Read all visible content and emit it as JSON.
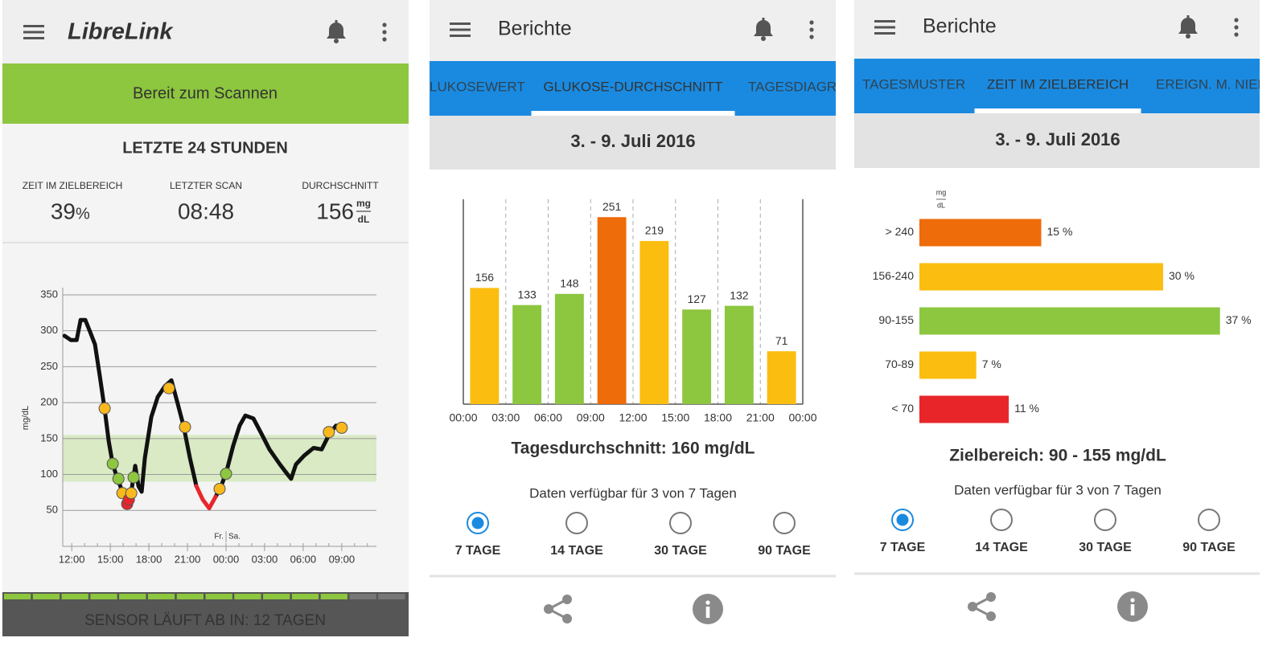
{
  "screens": [
    {
      "app_title": "LibreLink",
      "banner": "Bereit zum Scannen",
      "section_title": "LETZTE 24 STUNDEN",
      "stats": [
        {
          "label": "ZEIT IM ZIELBEREICH",
          "value": 39,
          "unit": "%"
        },
        {
          "label": "LETZTER SCAN",
          "value": "08:48"
        },
        {
          "label": "DURCHSCHNITT",
          "value": 156,
          "unit_top": "mg",
          "unit_bottom": "dL"
        }
      ],
      "chart": {
        "type": "line",
        "y_label": "mg/dL",
        "ylim": [
          0,
          360
        ],
        "yticks": [
          50,
          100,
          150,
          200,
          250,
          300,
          350
        ],
        "xlim": [
          -0.7,
          23.7
        ],
        "xticks": [
          {
            "value": 0,
            "label": "12:00"
          },
          {
            "value": 3,
            "label": "15:00"
          },
          {
            "value": 6,
            "label": "18:00"
          },
          {
            "value": 9,
            "label": "21:00"
          },
          {
            "value": 12,
            "label": "00:00"
          },
          {
            "value": 15,
            "label": "03:00"
          },
          {
            "value": 18,
            "label": "06:00"
          },
          {
            "value": 21,
            "label": "09:00"
          }
        ],
        "grid": true,
        "target_range": [
          90,
          155
        ],
        "target_color": "#d9eac4",
        "day_labels": [
          "Fr.",
          "Sa."
        ],
        "day_break": 12,
        "series": [
          {
            "color": "#111111",
            "x": [
              -0.56,
              -0.06,
              0.38,
              0.69,
              1.06,
              1.44,
              1.81,
              2.19,
              2.56,
              2.88,
              3.19,
              3.56,
              3.94,
              4.31,
              4.63,
              4.94,
              5.19,
              5.44,
              5.69,
              6.19,
              6.69,
              7.25,
              7.75,
              8.19,
              8.69,
              9.19,
              9.69,
              10.19,
              10.69,
              11.19,
              11.63,
              12.06,
              12.56,
              13.06,
              13.5,
              14.13,
              14.75,
              15.38,
              16.19,
              16.75,
              17.06,
              17.44,
              18.06,
              18.81,
              19.44,
              20.06,
              20.56
            ],
            "values": [
              293,
              287,
              287,
              315,
              315,
              298,
              281,
              236,
              191,
              146,
              114,
              94,
              76,
              61,
              76,
              112,
              84,
              76,
              123,
              180,
              208,
              223,
              231,
              202,
              168,
              123,
              84,
              null,
              null,
              69,
              84,
              106,
              140,
              168,
              182,
              178,
              157,
              135,
              114,
              101,
              94,
              114,
              126,
              137,
              135,
              157,
              168
            ]
          },
          {
            "color": "#e8262a",
            "x": [
              9.69,
              10.19,
              10.69,
              11.19
            ],
            "values": [
              84,
              65,
              53,
              69
            ]
          }
        ],
        "scans": {
          "x": [
            2.56,
            3.19,
            3.63,
            3.94,
            4.31,
            4.44,
            4.63,
            4.81,
            7.56,
            8.81,
            11.5,
            12.0,
            20.0,
            21.0
          ],
          "values": [
            192,
            115,
            94,
            74,
            59,
            65,
            74,
            96,
            220,
            166,
            80,
            101,
            159,
            165
          ],
          "colors": [
            "#f9b91c",
            "#8dc63f",
            "#8dc63f",
            "#f9b91c",
            "#e8262a",
            "#e8262a",
            "#f9b91c",
            "#8dc63f",
            "#f9b91c",
            "#f9b91c",
            "#f9b91c",
            "#8dc63f",
            "#f9b91c",
            "#f9b91c"
          ]
        }
      },
      "sensor": {
        "segments": 14,
        "active": 12,
        "active_color": "#8dc63f",
        "inactive_color": "#777777",
        "text": "SENSOR LÄUFT AB IN: 12 TAGEN"
      }
    },
    {
      "header": "Berichte",
      "tabs": [
        "LUKOSEWERT",
        "GLUKOSE-DURCHSCHNITT",
        "TAGESDIAGRA"
      ],
      "active_tab": 1,
      "date": "3. - 9. Juli 2016",
      "chart": {
        "type": "bar",
        "ylim": [
          0,
          275
        ],
        "xlim": [
          0,
          24
        ],
        "bins": [
          0,
          3,
          6,
          9,
          12,
          15,
          18,
          21,
          24
        ],
        "xticks": [
          {
            "value": 0,
            "label": "00:00"
          },
          {
            "value": 3,
            "label": "03:00"
          },
          {
            "value": 6,
            "label": "06:00"
          },
          {
            "value": 9,
            "label": "09:00"
          },
          {
            "value": 12,
            "label": "12:00"
          },
          {
            "value": 15,
            "label": "15:00"
          },
          {
            "value": 18,
            "label": "18:00"
          },
          {
            "value": 21,
            "label": "21:00"
          },
          {
            "value": 24,
            "label": "00:00"
          }
        ],
        "values": [
          156,
          133,
          148,
          251,
          219,
          127,
          132,
          71
        ],
        "colors": [
          "#fbbd10",
          "#8dc63f",
          "#8dc63f",
          "#ee6c0a",
          "#fbbd10",
          "#8dc63f",
          "#8dc63f",
          "#fbbd10"
        ]
      },
      "summary": "Tagesdurchschnitt: 160 mg/dL",
      "availability": "Daten verfügbar für 3 von 7 Tagen",
      "options": [
        "7 TAGE",
        "14 TAGE",
        "30 TAGE",
        "90 TAGE"
      ],
      "selected_option": 0
    },
    {
      "header": "Berichte",
      "tabs": [
        "TAGESMUSTER",
        "ZEIT IM ZIELBEREICH",
        "EREIGN. M. NIED"
      ],
      "active_tab": 1,
      "date": "3. - 9. Juli 2016",
      "chart": {
        "type": "bar",
        "horizontal": true,
        "unit_top": "mg",
        "unit_bottom": "dL",
        "xlim": [
          0,
          40
        ],
        "categories": [
          "> 240",
          "156-240",
          "90-155",
          "70-89",
          "< 70"
        ],
        "values": [
          15,
          30,
          37,
          7,
          11
        ],
        "value_labels": [
          "15 %",
          "30 %",
          "37 %",
          "7 %",
          "11 %"
        ],
        "colors": [
          "#ee6c0a",
          "#fbbd10",
          "#8dc63f",
          "#fbbd10",
          "#e8262a"
        ]
      },
      "summary": "Zielbereich: 90 - 155 mg/dL",
      "availability": "Daten verfügbar für 3 von 7 Tagen",
      "options": [
        "7 TAGE",
        "14 TAGE",
        "30 TAGE",
        "90 TAGE"
      ],
      "selected_option": 0
    }
  ]
}
